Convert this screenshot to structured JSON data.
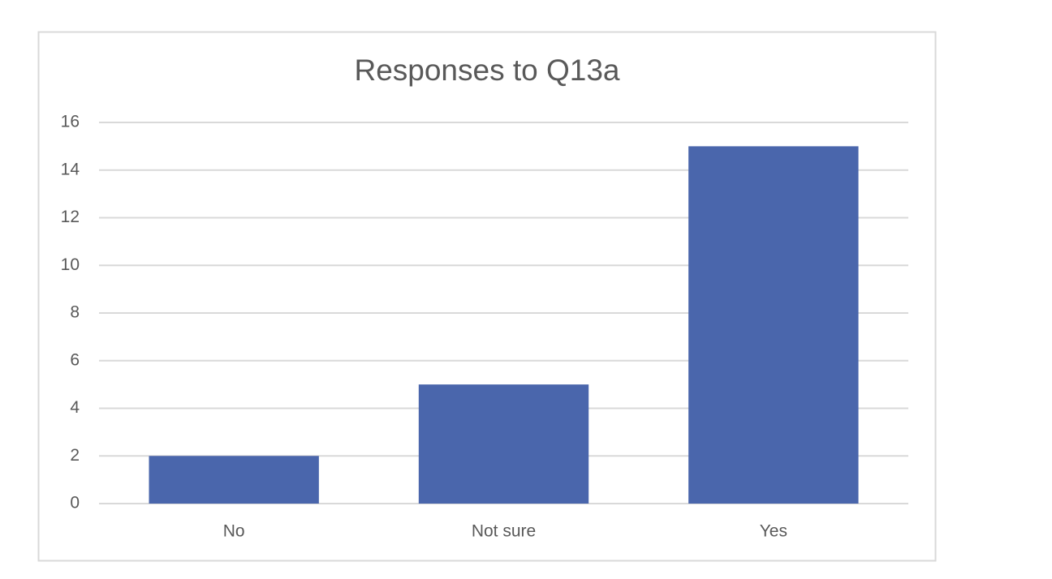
{
  "chart_data": {
    "type": "bar",
    "title": "Responses to Q13a",
    "categories": [
      "No",
      "Not sure",
      "Yes"
    ],
    "values": [
      2,
      5,
      15
    ],
    "color": "#4a66ac",
    "ylim": [
      0,
      16
    ],
    "yticks": [
      0,
      2,
      4,
      6,
      8,
      10,
      12,
      14,
      16
    ],
    "grid": true
  }
}
